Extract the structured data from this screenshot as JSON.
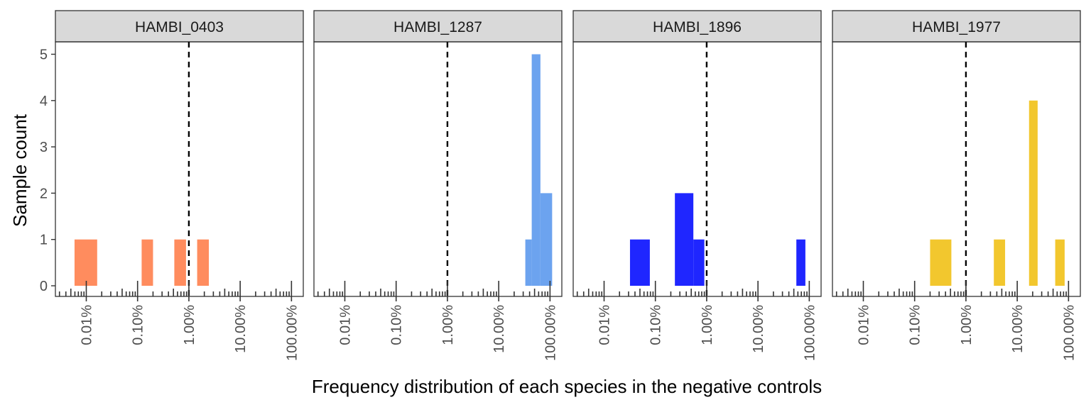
{
  "chart_data": {
    "type": "bar",
    "subtype": "faceted-histogram",
    "x_scale": "log10",
    "xlabel": "Frequency distribution of each species in the negative controls",
    "ylabel": "Sample count",
    "ylim": [
      0,
      5
    ],
    "xlim_percent": [
      0.0025,
      170
    ],
    "y_ticks": [
      0,
      1,
      2,
      3,
      4,
      5
    ],
    "x_ticks": [
      {
        "value": 0.01,
        "label": "0.01%"
      },
      {
        "value": 0.1,
        "label": "0.10%"
      },
      {
        "value": 1,
        "label": "1.00%"
      },
      {
        "value": 10,
        "label": "10.00%"
      },
      {
        "value": 100,
        "label": "100.00%"
      }
    ],
    "reference_line_percent": 1,
    "reference_line_style": "dashed",
    "grid": false,
    "facets": [
      {
        "title": "HAMBI_0403",
        "color": "#FF8C5E",
        "bins": [
          {
            "from": 0.0059,
            "to": 0.0163,
            "count": 1
          },
          {
            "from": 0.12,
            "to": 0.2,
            "count": 1
          },
          {
            "from": 0.52,
            "to": 0.88,
            "count": 1
          },
          {
            "from": 1.45,
            "to": 2.45,
            "count": 1
          }
        ]
      },
      {
        "title": "HAMBI_1287",
        "color": "#6CA3EF",
        "bins": [
          {
            "from": 33,
            "to": 44,
            "count": 1
          },
          {
            "from": 44,
            "to": 65,
            "count": 5
          },
          {
            "from": 65,
            "to": 110,
            "count": 2
          }
        ]
      },
      {
        "title": "HAMBI_1896",
        "color": "#1F26FF",
        "bins": [
          {
            "from": 0.032,
            "to": 0.078,
            "count": 1
          },
          {
            "from": 0.24,
            "to": 0.55,
            "count": 2
          },
          {
            "from": 0.55,
            "to": 0.9,
            "count": 1
          },
          {
            "from": 56,
            "to": 84,
            "count": 1
          }
        ]
      },
      {
        "title": "HAMBI_1977",
        "color": "#F2C72E",
        "bins": [
          {
            "from": 0.2,
            "to": 0.52,
            "count": 1
          },
          {
            "from": 3.5,
            "to": 5.8,
            "count": 1
          },
          {
            "from": 17,
            "to": 25,
            "count": 4
          },
          {
            "from": 55,
            "to": 84,
            "count": 1
          }
        ]
      }
    ]
  }
}
